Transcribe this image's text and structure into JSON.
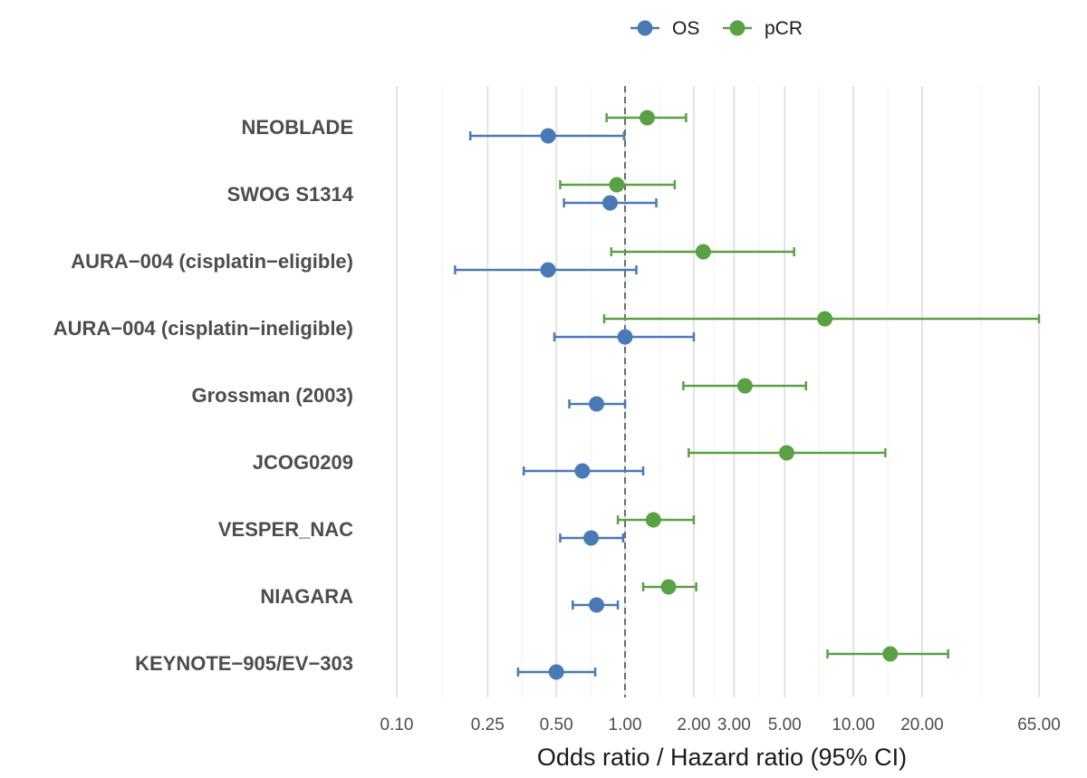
{
  "chart_data": {
    "type": "forest",
    "xlabel": "Odds ratio / Hazard ratio (95% CI)",
    "x_scale": "log",
    "xlim": [
      0.1,
      65
    ],
    "x_ticks": [
      0.1,
      0.25,
      0.5,
      1,
      2,
      3,
      5,
      10,
      20,
      65
    ],
    "x_tick_labels": [
      "0.10",
      "0.25",
      "0.50",
      "1.00",
      "2.00",
      "3.00",
      "5.00",
      "10.00",
      "20.00",
      "65.00"
    ],
    "reference_line": 1,
    "grid": true,
    "legend_position": "top-center",
    "series": [
      {
        "name": "OS",
        "color": "#4a7ab5"
      },
      {
        "name": "pCR",
        "color": "#5aa146"
      }
    ],
    "studies": [
      {
        "label": "NEOBLADE",
        "pCR": {
          "est": 1.25,
          "lo": 0.83,
          "hi": 1.85
        },
        "OS": {
          "est": 0.46,
          "lo": 0.21,
          "hi": 0.99
        }
      },
      {
        "label": "SWOG S1314",
        "pCR": {
          "est": 0.92,
          "lo": 0.52,
          "hi": 1.65
        },
        "OS": {
          "est": 0.86,
          "lo": 0.54,
          "hi": 1.37
        }
      },
      {
        "label": "AURA−004 (cisplatin−eligible)",
        "pCR": {
          "est": 2.2,
          "lo": 0.87,
          "hi": 5.5
        },
        "OS": {
          "est": 0.46,
          "lo": 0.18,
          "hi": 1.12
        }
      },
      {
        "label": "AURA−004 (cisplatin−ineligible)",
        "pCR": {
          "est": 7.5,
          "lo": 0.81,
          "hi": 65
        },
        "OS": {
          "est": 1.0,
          "lo": 0.49,
          "hi": 2.0
        }
      },
      {
        "label": "Grossman (2003)",
        "pCR": {
          "est": 3.35,
          "lo": 1.8,
          "hi": 6.2
        },
        "OS": {
          "est": 0.75,
          "lo": 0.57,
          "hi": 1.0
        }
      },
      {
        "label": "JCOG0209",
        "pCR": {
          "est": 5.1,
          "lo": 1.9,
          "hi": 13.8
        },
        "OS": {
          "est": 0.65,
          "lo": 0.36,
          "hi": 1.2
        }
      },
      {
        "label": "VESPER_NAC",
        "pCR": {
          "est": 1.33,
          "lo": 0.93,
          "hi": 2.0
        },
        "OS": {
          "est": 0.71,
          "lo": 0.52,
          "hi": 0.98
        }
      },
      {
        "label": "NIAGARA",
        "pCR": {
          "est": 1.55,
          "lo": 1.2,
          "hi": 2.05
        },
        "OS": {
          "est": 0.75,
          "lo": 0.59,
          "hi": 0.93
        }
      },
      {
        "label": "KEYNOTE−905/EV−303",
        "pCR": {
          "est": 14.5,
          "lo": 7.7,
          "hi": 26
        },
        "OS": {
          "est": 0.5,
          "lo": 0.34,
          "hi": 0.74
        }
      }
    ]
  }
}
